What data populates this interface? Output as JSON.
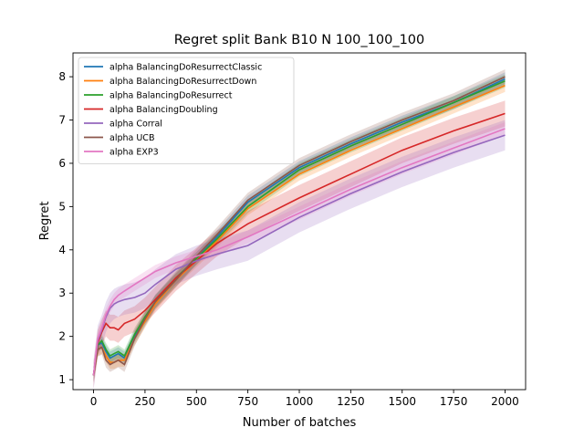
{
  "chart_data": {
    "type": "line",
    "title": "Regret split Bank B10 N 100_100_100",
    "xlabel": "Number of batches",
    "ylabel": "Regret",
    "xlim": [
      -100,
      2100
    ],
    "ylim": [
      0.77,
      8.55
    ],
    "xticks": [
      0,
      250,
      500,
      750,
      1000,
      1250,
      1500,
      1750,
      2000
    ],
    "yticks": [
      1,
      2,
      3,
      4,
      5,
      6,
      7,
      8
    ],
    "grid": false,
    "legend": "top-left",
    "series": [
      {
        "name": "alpha BalancingDoResurrectClassic",
        "color": "#1f77b4",
        "x": [
          0,
          20,
          40,
          60,
          80,
          100,
          120,
          150,
          200,
          250,
          300,
          400,
          500,
          600,
          750,
          1000,
          1250,
          1500,
          1750,
          2000
        ],
        "y": [
          1.1,
          1.8,
          1.85,
          1.65,
          1.5,
          1.55,
          1.6,
          1.5,
          2.0,
          2.4,
          2.8,
          3.3,
          3.8,
          4.3,
          5.1,
          5.9,
          6.45,
          6.95,
          7.4,
          7.95
        ],
        "band": 0.15
      },
      {
        "name": "alpha BalancingDoResurrectDown",
        "color": "#ff7f0e",
        "x": [
          0,
          20,
          40,
          60,
          80,
          100,
          120,
          150,
          200,
          250,
          300,
          400,
          500,
          600,
          750,
          1000,
          1250,
          1500,
          1750,
          2000
        ],
        "y": [
          1.1,
          1.7,
          1.75,
          1.55,
          1.4,
          1.4,
          1.45,
          1.45,
          1.95,
          2.35,
          2.75,
          3.3,
          3.75,
          4.2,
          4.95,
          5.75,
          6.3,
          6.8,
          7.3,
          7.8
        ],
        "band": 0.15
      },
      {
        "name": "alpha BalancingDoResurrect",
        "color": "#2ca02c",
        "x": [
          0,
          20,
          40,
          60,
          80,
          100,
          120,
          150,
          200,
          250,
          300,
          400,
          500,
          600,
          750,
          1000,
          1250,
          1500,
          1750,
          2000
        ],
        "y": [
          1.1,
          1.8,
          1.9,
          1.7,
          1.55,
          1.6,
          1.65,
          1.55,
          2.05,
          2.45,
          2.8,
          3.35,
          3.8,
          4.25,
          5.0,
          5.85,
          6.4,
          6.9,
          7.4,
          7.9
        ],
        "band": 0.15
      },
      {
        "name": "alpha BalancingDoubling",
        "color": "#d62728",
        "x": [
          0,
          20,
          40,
          60,
          80,
          100,
          120,
          150,
          200,
          250,
          300,
          400,
          500,
          600,
          750,
          1000,
          1250,
          1500,
          1750,
          2000
        ],
        "y": [
          1.1,
          1.85,
          2.1,
          2.3,
          2.2,
          2.2,
          2.15,
          2.3,
          2.4,
          2.6,
          2.85,
          3.35,
          3.75,
          4.15,
          4.6,
          5.2,
          5.75,
          6.3,
          6.75,
          7.15
        ],
        "band": 0.3
      },
      {
        "name": "alpha Corral",
        "color": "#9467bd",
        "x": [
          0,
          20,
          40,
          60,
          80,
          100,
          120,
          150,
          200,
          250,
          300,
          400,
          500,
          600,
          750,
          1000,
          1250,
          1500,
          1750,
          2000
        ],
        "y": [
          1.1,
          1.9,
          2.15,
          2.45,
          2.65,
          2.75,
          2.8,
          2.85,
          2.9,
          3.0,
          3.2,
          3.55,
          3.75,
          3.9,
          4.1,
          4.75,
          5.3,
          5.8,
          6.25,
          6.65
        ],
        "band": 0.35
      },
      {
        "name": "alpha UCB",
        "color": "#8c564b",
        "x": [
          0,
          20,
          40,
          60,
          80,
          100,
          120,
          150,
          200,
          250,
          300,
          400,
          500,
          600,
          750,
          1000,
          1250,
          1500,
          1750,
          2000
        ],
        "y": [
          1.1,
          1.7,
          1.75,
          1.45,
          1.35,
          1.4,
          1.45,
          1.35,
          1.95,
          2.4,
          2.8,
          3.3,
          3.85,
          4.35,
          5.15,
          5.95,
          6.5,
          7.0,
          7.45,
          8.0
        ],
        "band": 0.17
      },
      {
        "name": "alpha EXP3",
        "color": "#e377c2",
        "x": [
          0,
          20,
          40,
          60,
          80,
          100,
          120,
          150,
          200,
          250,
          300,
          400,
          500,
          600,
          750,
          1000,
          1250,
          1500,
          1750,
          2000
        ],
        "y": [
          1.1,
          1.95,
          2.2,
          2.5,
          2.7,
          2.85,
          2.95,
          3.05,
          3.2,
          3.35,
          3.5,
          3.7,
          3.85,
          4.0,
          4.3,
          4.85,
          5.4,
          5.9,
          6.35,
          6.8
        ],
        "band": 0.15
      }
    ]
  }
}
